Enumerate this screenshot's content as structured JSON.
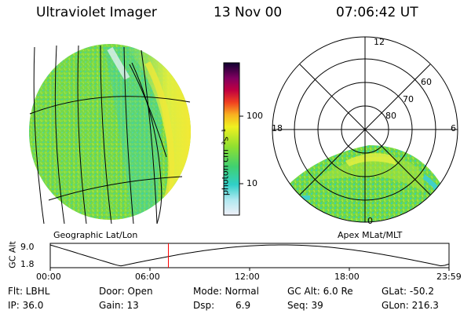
{
  "header": {
    "instrument": "Ultraviolet Imager",
    "date": "13 Nov 00",
    "time": "07:06:42 UT"
  },
  "colorbar": {
    "unit_label": "photon cm⁻²s⁻¹",
    "ticks": [
      "100",
      "10"
    ]
  },
  "geo_panel": {
    "caption": "Geographic Lat/Lon"
  },
  "polar_panel": {
    "caption": "Apex MLat/MLT",
    "mlt_labels": {
      "top": "12",
      "left": "18",
      "right": "6",
      "bottom": "0"
    },
    "lat_labels": [
      "60",
      "70",
      "80"
    ]
  },
  "altitude_plot": {
    "ylabel": "GC Alt",
    "ymax": "9.0",
    "ymin": "1.8",
    "xticks": [
      "00:00",
      "06:00",
      "12:00",
      "18:00",
      "23:59"
    ],
    "current_time_hours": 7.11
  },
  "footer": {
    "filter": "Flt: LBHL",
    "door": "Door: Open",
    "mode": "Mode: Normal",
    "gc_alt": "GC Alt: 6.0 Re",
    "glat": "GLat: -50.2",
    "ip": "IP: 36.0",
    "gain": "Gain: 13",
    "dsp_label": "Dsp:",
    "dsp_value": "6.9",
    "seq": "Seq: 39",
    "glon": "GLon: 216.3"
  },
  "colors": {
    "background": "#ffffff",
    "marker": "#ff0000",
    "image_base": "#7ed83c"
  }
}
